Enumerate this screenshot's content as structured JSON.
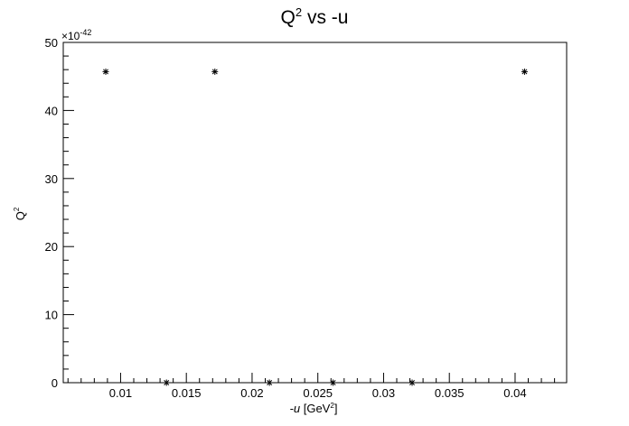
{
  "chart_data": {
    "type": "scatter",
    "title_main": "Q",
    "title_sup": "2",
    "title_rest": " vs -u",
    "ylabel_main": "Q",
    "ylabel_sup": "2",
    "xlabel_italic": "-u",
    "xlabel_pre": " [GeV",
    "xlabel_sup": "2",
    "xlabel_post": "]",
    "y_exponent_prefix": "×10",
    "y_exponent_sup": "-42",
    "x_ticks": [
      {
        "v": 0.01,
        "label": "0.01"
      },
      {
        "v": 0.015,
        "label": "0.015"
      },
      {
        "v": 0.02,
        "label": "0.02"
      },
      {
        "v": 0.025,
        "label": "0.025"
      },
      {
        "v": 0.03,
        "label": "0.03"
      },
      {
        "v": 0.035,
        "label": "0.035"
      },
      {
        "v": 0.04,
        "label": "0.04"
      }
    ],
    "y_ticks": [
      {
        "v": 0,
        "label": "0"
      },
      {
        "v": 10,
        "label": "10"
      },
      {
        "v": 20,
        "label": "20"
      },
      {
        "v": 30,
        "label": "30"
      },
      {
        "v": 40,
        "label": "40"
      },
      {
        "v": 50,
        "label": "50"
      }
    ],
    "xlim": [
      0.00564,
      0.04392
    ],
    "ylim": [
      0,
      50
    ],
    "grid": false,
    "points": [
      {
        "x": 0.00887,
        "y": 45.7
      },
      {
        "x": 0.01717,
        "y": 45.7
      },
      {
        "x": 0.04072,
        "y": 45.7
      },
      {
        "x": 0.01349,
        "y": 0
      },
      {
        "x": 0.02132,
        "y": 0
      },
      {
        "x": 0.02616,
        "y": 0
      },
      {
        "x": 0.03217,
        "y": 0
      }
    ]
  }
}
